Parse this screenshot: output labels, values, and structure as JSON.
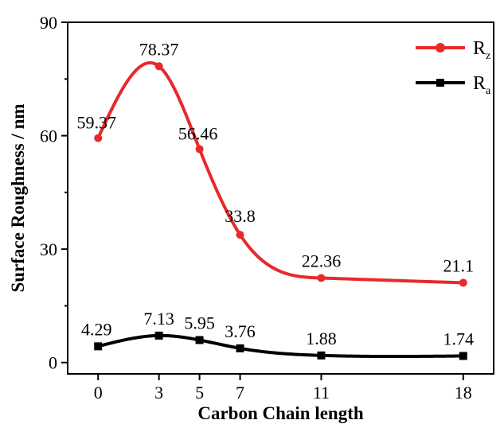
{
  "chart_data": {
    "type": "scatter",
    "xlabel": "Carbon Chain length",
    "ylabel": "Surface Roughness / nm",
    "xlim": [
      -1.5,
      19.5
    ],
    "ylim": [
      -3,
      90
    ],
    "x_ticks": [
      0,
      3,
      5,
      7,
      11,
      18
    ],
    "y_ticks": [
      0,
      30,
      60,
      90
    ],
    "legend_position": "top-right",
    "series": [
      {
        "name": "Rz",
        "name_main": "R",
        "name_sub": "z",
        "color": "#e8292b",
        "marker": "circle",
        "x": [
          0,
          3,
          5,
          7,
          11,
          18
        ],
        "y": [
          59.37,
          78.37,
          56.46,
          33.8,
          22.36,
          21.1
        ],
        "labels": [
          "59.37",
          "78.37",
          "56.46",
          "33.8",
          "22.36",
          "21.1"
        ],
        "smooth_curve": true
      },
      {
        "name": "Ra",
        "name_main": "R",
        "name_sub": "a",
        "color": "#000000",
        "marker": "square",
        "x": [
          0,
          3,
          5,
          7,
          11,
          18
        ],
        "y": [
          4.29,
          7.13,
          5.95,
          3.76,
          1.88,
          1.74
        ],
        "labels": [
          "4.29",
          "7.13",
          "5.95",
          "3.76",
          "1.88",
          "1.74"
        ],
        "smooth_curve": true
      }
    ]
  }
}
